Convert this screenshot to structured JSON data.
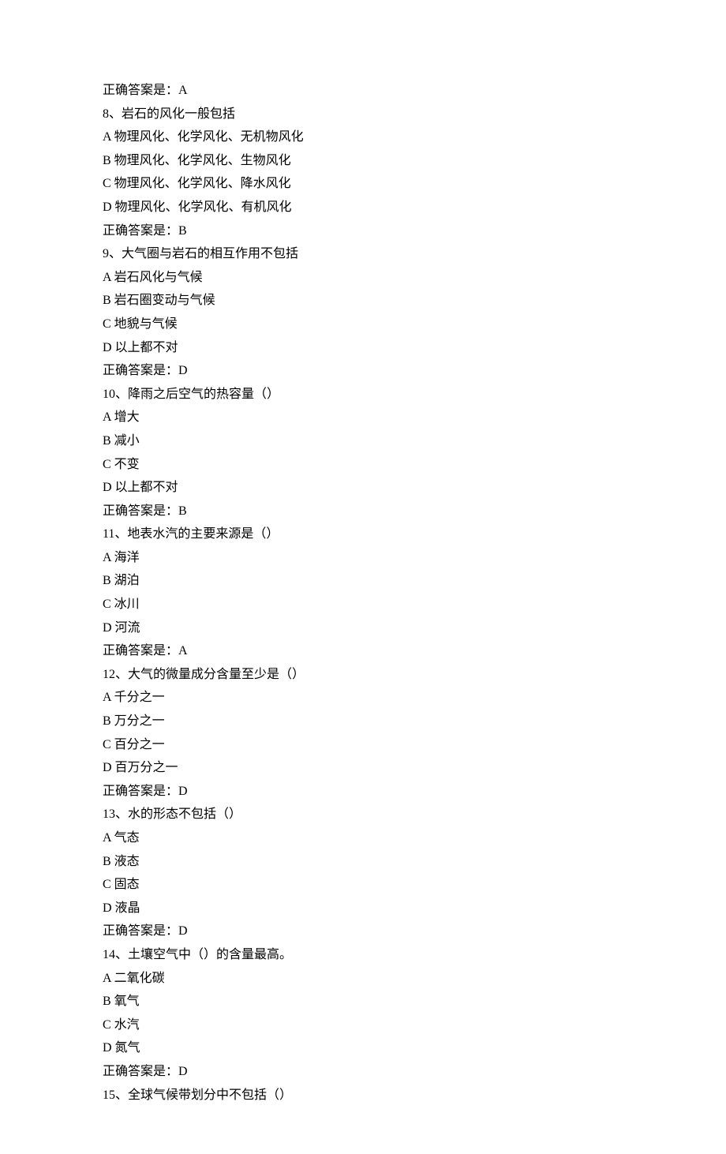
{
  "lines": [
    "正确答案是：A",
    "8、岩石的风化一般包括",
    "A 物理风化、化学风化、无机物风化",
    "B 物理风化、化学风化、生物风化",
    "C 物理风化、化学风化、降水风化",
    "D 物理风化、化学风化、有机风化",
    "正确答案是：B",
    "9、大气圈与岩石的相互作用不包括",
    "A 岩石风化与气候",
    "B 岩石圈变动与气候",
    "C 地貌与气候",
    "D 以上都不对",
    "正确答案是：D",
    "10、降雨之后空气的热容量（）",
    "A 增大",
    "B 减小",
    "C 不变",
    "D 以上都不对",
    "正确答案是：B",
    "11、地表水汽的主要来源是（）",
    "A 海洋",
    "B 湖泊",
    "C 冰川",
    "D 河流",
    "正确答案是：A",
    "12、大气的微量成分含量至少是（）",
    "A 千分之一",
    "B 万分之一",
    "C 百分之一",
    "D 百万分之一",
    "正确答案是：D",
    "13、水的形态不包括（）",
    "A 气态",
    "B 液态",
    "C 固态",
    "D 液晶",
    "正确答案是：D",
    "14、土壤空气中（）的含量最高。",
    "A 二氧化碳",
    "B 氧气",
    "C 水汽",
    "D 氮气",
    "正确答案是：D",
    "15、全球气候带划分中不包括（）"
  ]
}
